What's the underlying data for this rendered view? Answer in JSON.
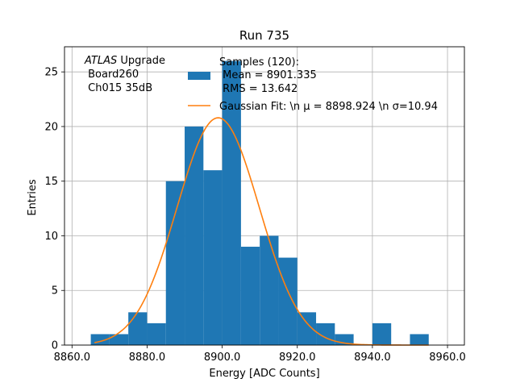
{
  "chart_data": {
    "type": "bar",
    "title": "Run 735",
    "xlabel": "Energy [ADC Counts]",
    "ylabel": "Entries",
    "xlim": [
      8858.0,
      8964.5
    ],
    "ylim": [
      0,
      27.3
    ],
    "xticks": [
      8860,
      8880,
      8900,
      8920,
      8940,
      8960
    ],
    "xtick_labels": [
      "8860.0",
      "8880.0",
      "8900.0",
      "8920.0",
      "8940.0",
      "8960.0"
    ],
    "yticks": [
      0,
      5,
      10,
      15,
      20,
      25
    ],
    "ytick_labels": [
      "0",
      "5",
      "10",
      "15",
      "20",
      "25"
    ],
    "grid": true,
    "histogram": {
      "bin_edges": [
        8865,
        8870,
        8875,
        8880,
        8885,
        8890,
        8895,
        8900,
        8905,
        8910,
        8915,
        8920,
        8925,
        8930,
        8935,
        8940,
        8945,
        8950,
        8955
      ],
      "counts": [
        1,
        1,
        3,
        2,
        15,
        20,
        16,
        26,
        9,
        10,
        8,
        3,
        2,
        1,
        0,
        2,
        0,
        1
      ],
      "color": "#1f77b4"
    },
    "gaussian_fit": {
      "mu": 8898.924,
      "sigma": 10.94,
      "amplitude": 20.8,
      "x_range": [
        8866,
        8955
      ],
      "color": "#ff7f0e"
    },
    "legend": {
      "placement": "top-right",
      "entries": [
        {
          "label_lines": [
            "Samples (120):",
            " Mean = 8901.335",
            " RMS = 13.642"
          ],
          "color": "#1f77b4",
          "kind": "patch"
        },
        {
          "label": "Gaussian Fit: \\n μ = 8898.924 \\n σ=10.94",
          "color": "#ff7f0e",
          "kind": "line"
        }
      ]
    },
    "annotation": {
      "italic": "ATLAS",
      "rest": " Upgrade",
      "line2": " Board260",
      "line3": " Ch015 35dB"
    }
  }
}
